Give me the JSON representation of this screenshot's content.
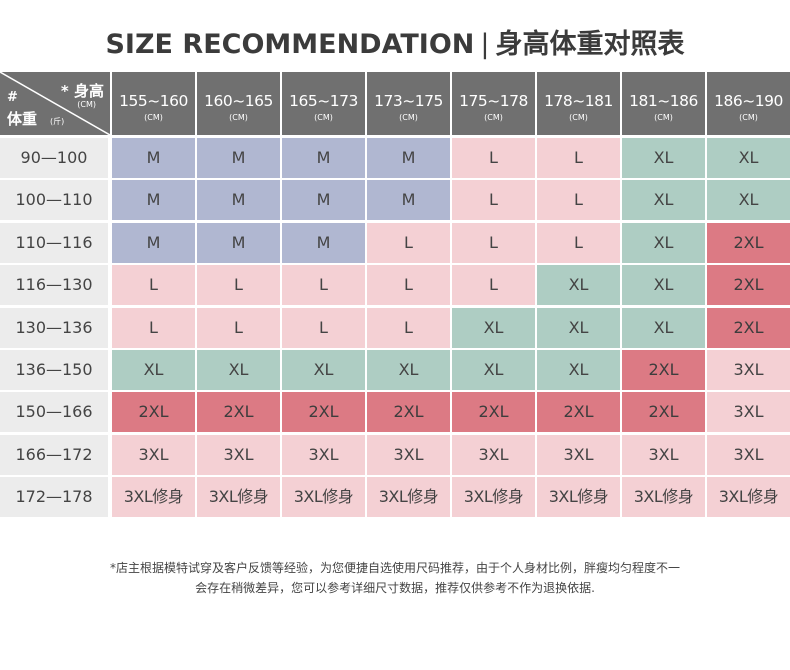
{
  "title": {
    "english": "SIZE RECOMMENDATION",
    "separator": "|",
    "chinese": "身高体重对照表"
  },
  "table": {
    "corner": {
      "height_label": "* 身高",
      "height_unit": "(CM)",
      "hash": "#",
      "weight_label": "体重",
      "weight_unit": "(斤)"
    },
    "header_unit": "(CM)",
    "height_ranges": [
      "155~160",
      "160~165",
      "165~173",
      "173~175",
      "175~178",
      "178~181",
      "181~186",
      "186~190"
    ],
    "weight_ranges": [
      "90—100",
      "100—110",
      "110—116",
      "116—130",
      "130—136",
      "136—150",
      "150—166",
      "166—172",
      "172—178"
    ],
    "rows": [
      [
        "M",
        "M",
        "M",
        "M",
        "L",
        "L",
        "XL",
        "XL"
      ],
      [
        "M",
        "M",
        "M",
        "M",
        "L",
        "L",
        "XL",
        "XL"
      ],
      [
        "M",
        "M",
        "M",
        "L",
        "L",
        "L",
        "XL",
        "2XL"
      ],
      [
        "L",
        "L",
        "L",
        "L",
        "L",
        "XL",
        "XL",
        "2XL"
      ],
      [
        "L",
        "L",
        "L",
        "L",
        "XL",
        "XL",
        "XL",
        "2XL"
      ],
      [
        "XL",
        "XL",
        "XL",
        "XL",
        "XL",
        "XL",
        "2XL",
        "3XL"
      ],
      [
        "2XL",
        "2XL",
        "2XL",
        "2XL",
        "2XL",
        "2XL",
        "2XL",
        "3XL"
      ],
      [
        "3XL",
        "3XL",
        "3XL",
        "3XL",
        "3XL",
        "3XL",
        "3XL",
        "3XL"
      ],
      [
        "3XL修身",
        "3XL修身",
        "3XL修身",
        "3XL修身",
        "3XL修身",
        "3XL修身",
        "3XL修身",
        "3XL修身"
      ]
    ],
    "colors": {
      "M": "#b0b7d1",
      "L": "#f4d0d4",
      "XL": "#aecdc3",
      "2XL": "#dc7a84",
      "3XL": "#f4d0d4",
      "header": "#707070",
      "weight_column": "#ececec"
    }
  },
  "notes": {
    "line1": "*店主根据模特试穿及客户反馈等经验，为您便捷自选使用尺码推荐，由于个人身材比例，胖瘦均匀程度不一",
    "line2": "会存在稍微差异，您可以参考详细尺寸数据，推荐仅供参考不作为退换依据."
  }
}
